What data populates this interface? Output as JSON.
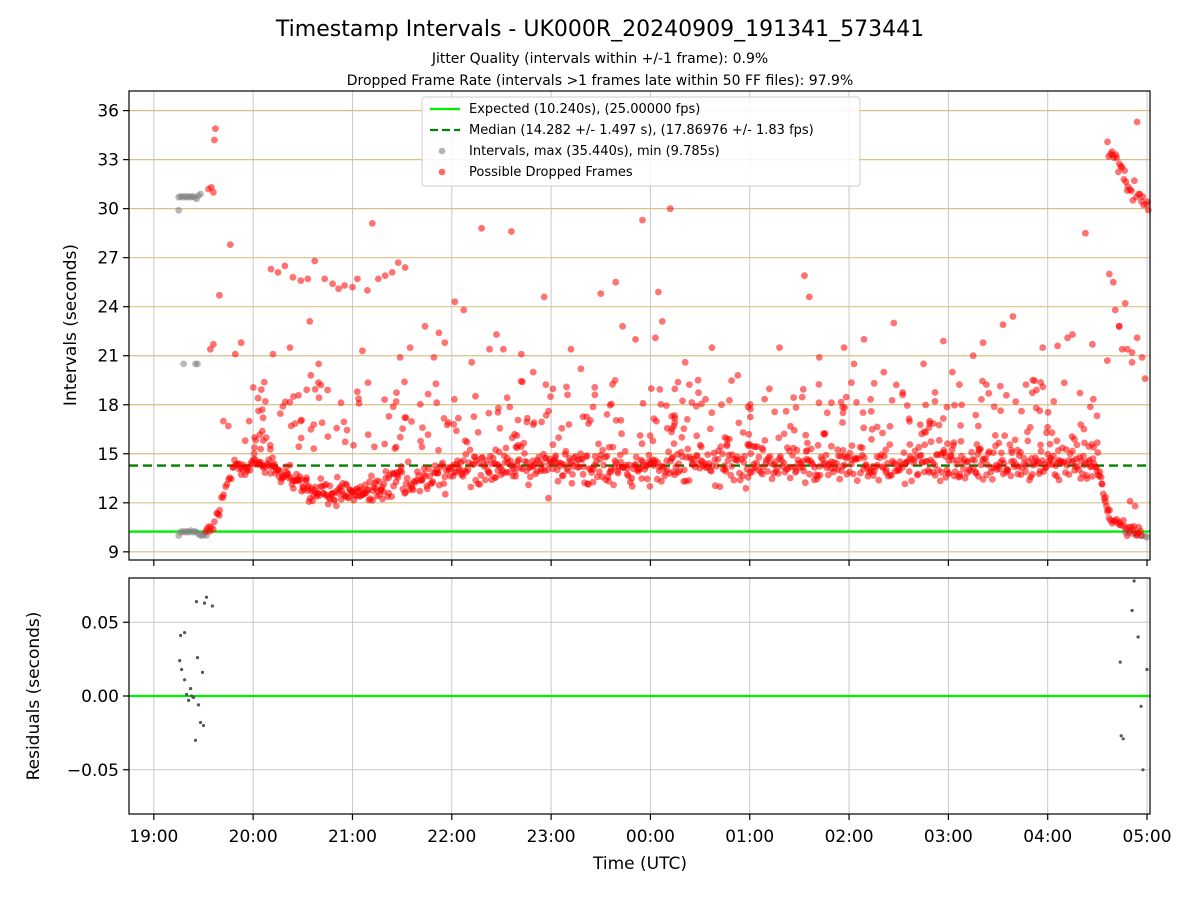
{
  "chart_data": [
    {
      "type": "scatter",
      "title": "Timestamp Intervals - UK000R_20240909_191341_573441",
      "subtitle_1": "Jitter Quality (intervals within +/-1 frame): 0.9%",
      "subtitle_2": "Dropped Frame Rate (intervals >1 frames late within 50 FF files): 97.9%",
      "ylabel": "Intervals (seconds)",
      "ylim": [
        8.5,
        37.2
      ],
      "yticks": [
        9,
        12,
        15,
        18,
        21,
        24,
        27,
        30,
        33,
        36
      ],
      "xlim_hours": [
        18.75,
        29.03
      ],
      "grid": true,
      "legend_position": "top-center",
      "reference_lines": [
        {
          "name": "Expected (10.240s), (25.00000 fps)",
          "y": 10.24,
          "style": "solid",
          "color": "#00ee00"
        },
        {
          "name": "Median (14.282 +/- 1.497 s), (17.86976 +/- 1.83 fps)",
          "y": 14.282,
          "style": "dashed",
          "color": "#008000"
        }
      ],
      "series": [
        {
          "name": "Intervals, max (35.440s), min (9.785s)",
          "color": "#808080",
          "points": [
            [
              19.25,
              30.7
            ],
            [
              19.27,
              30.75
            ],
            [
              19.29,
              30.7
            ],
            [
              19.31,
              30.75
            ],
            [
              19.33,
              30.7
            ],
            [
              19.35,
              30.75
            ],
            [
              19.37,
              30.7
            ],
            [
              19.39,
              30.75
            ],
            [
              19.41,
              30.7
            ],
            [
              19.43,
              30.6
            ],
            [
              19.45,
              30.8
            ],
            [
              19.47,
              30.9
            ],
            [
              19.25,
              29.9
            ],
            [
              19.3,
              20.5
            ],
            [
              19.42,
              20.5
            ],
            [
              19.44,
              20.5
            ],
            [
              19.25,
              10.0
            ],
            [
              19.27,
              10.2
            ],
            [
              19.29,
              10.25
            ],
            [
              19.31,
              10.2
            ],
            [
              19.33,
              10.25
            ],
            [
              19.35,
              10.2
            ],
            [
              19.37,
              10.3
            ],
            [
              19.39,
              10.2
            ],
            [
              19.41,
              10.25
            ],
            [
              19.43,
              10.2
            ],
            [
              19.45,
              10.1
            ],
            [
              19.47,
              10.0
            ],
            [
              19.49,
              10.0
            ],
            [
              19.51,
              10.1
            ],
            [
              19.53,
              10.0
            ],
            [
              28.78,
              10.2
            ],
            [
              28.82,
              10.15
            ],
            [
              28.86,
              10.1
            ],
            [
              28.9,
              10.05
            ],
            [
              28.94,
              10.0
            ],
            [
              28.98,
              9.95
            ],
            [
              29.0,
              9.9
            ]
          ]
        },
        {
          "name": "Possible Dropped Frames",
          "color": "#ff0000",
          "clusters": [
            {
              "x_start": 19.52,
              "x_end": 19.66,
              "y_start": 10.3,
              "y_end": 11.2,
              "count": 10,
              "spread": 0.25
            },
            {
              "x_start": 19.66,
              "x_end": 19.8,
              "y_start": 11.8,
              "y_end": 14.2,
              "count": 10,
              "spread": 0.3
            },
            {
              "x_start": 19.8,
              "x_end": 20.2,
              "y_start": 14.2,
              "y_end": 14.4,
              "count": 40,
              "spread": 0.3
            },
            {
              "x_start": 20.2,
              "x_end": 20.55,
              "y_start": 14.0,
              "y_end": 13.0,
              "count": 40,
              "spread": 0.35
            },
            {
              "x_start": 20.55,
              "x_end": 21.3,
              "y_start": 12.6,
              "y_end": 12.8,
              "count": 90,
              "spread": 0.4
            },
            {
              "x_start": 21.3,
              "x_end": 22.1,
              "y_start": 13.0,
              "y_end": 14.0,
              "count": 80,
              "spread": 0.45
            },
            {
              "x_start": 22.1,
              "x_end": 24.0,
              "y_start": 14.2,
              "y_end": 14.3,
              "count": 200,
              "spread": 0.55
            },
            {
              "x_start": 24.0,
              "x_end": 27.0,
              "y_start": 14.3,
              "y_end": 14.3,
              "count": 280,
              "spread": 0.5
            },
            {
              "x_start": 27.0,
              "x_end": 28.5,
              "y_start": 14.3,
              "y_end": 14.5,
              "count": 150,
              "spread": 0.5
            },
            {
              "x_start": 28.5,
              "x_end": 28.62,
              "y_start": 14.0,
              "y_end": 11.5,
              "count": 15,
              "spread": 0.25
            },
            {
              "x_start": 28.62,
              "x_end": 28.95,
              "y_start": 10.9,
              "y_end": 10.3,
              "count": 25,
              "spread": 0.2
            },
            {
              "x_start": 28.6,
              "x_end": 28.78,
              "y_start": 33.8,
              "y_end": 31.8,
              "count": 14,
              "spread": 0.25
            },
            {
              "x_start": 28.78,
              "x_end": 29.02,
              "y_start": 31.5,
              "y_end": 30.0,
              "count": 16,
              "spread": 0.25
            }
          ],
          "scatter_band": {
            "x_start": 20.0,
            "x_end": 28.5,
            "y_min": 15.2,
            "y_max": 19.5,
            "count": 320
          },
          "outliers": [
            [
              19.55,
              31.2
            ],
            [
              19.58,
              31.3
            ],
            [
              19.6,
              31.0
            ],
            [
              19.62,
              34.9
            ],
            [
              19.61,
              34.2
            ],
            [
              19.66,
              24.7
            ],
            [
              19.77,
              27.8
            ],
            [
              19.57,
              21.4
            ],
            [
              19.6,
              21.7
            ],
            [
              19.7,
              17.0
            ],
            [
              19.75,
              16.7
            ],
            [
              19.82,
              21.1
            ],
            [
              19.88,
              21.8
            ],
            [
              19.92,
              15.8
            ],
            [
              19.96,
              17.0
            ],
            [
              20.05,
              18.4
            ],
            [
              20.1,
              17.2
            ],
            [
              20.18,
              26.3
            ],
            [
              20.25,
              26.1
            ],
            [
              20.32,
              26.5
            ],
            [
              20.4,
              25.8
            ],
            [
              20.48,
              25.6
            ],
            [
              20.55,
              25.7
            ],
            [
              20.62,
              26.8
            ],
            [
              20.72,
              25.7
            ],
            [
              20.8,
              25.4
            ],
            [
              20.86,
              25.1
            ],
            [
              20.92,
              25.3
            ],
            [
              21.0,
              25.2
            ],
            [
              21.05,
              25.7
            ],
            [
              21.15,
              25.0
            ],
            [
              21.2,
              29.1
            ],
            [
              21.26,
              25.7
            ],
            [
              21.33,
              25.9
            ],
            [
              21.4,
              26.1
            ],
            [
              21.46,
              26.7
            ],
            [
              21.53,
              26.4
            ],
            [
              20.37,
              21.5
            ],
            [
              20.2,
              21.1
            ],
            [
              20.57,
              23.1
            ],
            [
              20.66,
              20.5
            ],
            [
              20.75,
              18.9
            ],
            [
              20.58,
              19.8
            ],
            [
              20.3,
              17.9
            ],
            [
              20.48,
              17.0
            ],
            [
              21.1,
              21.3
            ],
            [
              21.48,
              20.9
            ],
            [
              21.58,
              21.5
            ],
            [
              21.73,
              22.8
            ],
            [
              21.82,
              20.9
            ],
            [
              21.87,
              22.4
            ],
            [
              21.93,
              21.8
            ],
            [
              22.03,
              24.3
            ],
            [
              22.12,
              23.8
            ],
            [
              22.2,
              20.6
            ],
            [
              22.3,
              28.8
            ],
            [
              22.6,
              28.6
            ],
            [
              22.38,
              21.4
            ],
            [
              22.45,
              22.3
            ],
            [
              22.52,
              21.4
            ],
            [
              22.7,
              21.1
            ],
            [
              22.82,
              20.0
            ],
            [
              22.93,
              24.6
            ],
            [
              23.2,
              21.4
            ],
            [
              23.3,
              20.2
            ],
            [
              23.5,
              24.8
            ],
            [
              23.65,
              25.5
            ],
            [
              23.72,
              22.8
            ],
            [
              23.85,
              22.0
            ],
            [
              23.92,
              29.3
            ],
            [
              24.05,
              22.1
            ],
            [
              24.08,
              24.9
            ],
            [
              24.12,
              23.1
            ],
            [
              24.2,
              30.0
            ],
            [
              24.35,
              20.6
            ],
            [
              24.48,
              19.5
            ],
            [
              24.62,
              21.5
            ],
            [
              24.88,
              19.8
            ],
            [
              25.3,
              21.5
            ],
            [
              25.55,
              25.9
            ],
            [
              25.6,
              24.6
            ],
            [
              25.7,
              20.9
            ],
            [
              25.95,
              21.5
            ],
            [
              26.05,
              20.5
            ],
            [
              26.15,
              22.0
            ],
            [
              26.35,
              20.0
            ],
            [
              26.45,
              23.0
            ],
            [
              26.75,
              20.5
            ],
            [
              26.95,
              21.9
            ],
            [
              27.04,
              20.0
            ],
            [
              27.25,
              21.0
            ],
            [
              27.35,
              21.8
            ],
            [
              27.55,
              22.9
            ],
            [
              27.65,
              23.4
            ],
            [
              27.85,
              19.5
            ],
            [
              27.95,
              21.5
            ],
            [
              28.1,
              21.6
            ],
            [
              28.2,
              22.1
            ],
            [
              28.25,
              22.3
            ],
            [
              28.38,
              28.5
            ],
            [
              28.45,
              21.7
            ],
            [
              28.6,
              20.7
            ],
            [
              28.72,
              22.8
            ],
            [
              28.78,
              24.2
            ],
            [
              28.85,
              20.6
            ],
            [
              28.9,
              22.1
            ],
            [
              28.62,
              26.0
            ],
            [
              28.66,
              25.5
            ],
            [
              28.68,
              23.8
            ],
            [
              28.72,
              22.8
            ],
            [
              28.75,
              21.4
            ],
            [
              28.8,
              21.4
            ],
            [
              28.85,
              21.2
            ],
            [
              28.9,
              35.3
            ],
            [
              28.95,
              20.9
            ],
            [
              28.98,
              19.6
            ],
            [
              28.83,
              12.1
            ],
            [
              28.88,
              11.8
            ]
          ]
        }
      ]
    },
    {
      "type": "scatter",
      "xlabel": "Time (UTC)",
      "ylabel": "Residuals (seconds)",
      "ylim": [
        -0.08,
        0.08
      ],
      "yticks": [
        -0.05,
        0.0,
        0.05
      ],
      "ytick_labels": [
        "−0.05",
        "0.00",
        "0.05"
      ],
      "xlim_hours": [
        18.75,
        29.03
      ],
      "xticks": [
        19,
        20,
        21,
        22,
        23,
        24,
        25,
        26,
        27,
        28,
        29
      ],
      "xtick_labels": [
        "19:00",
        "20:00",
        "21:00",
        "22:00",
        "23:00",
        "00:00",
        "01:00",
        "02:00",
        "03:00",
        "04:00",
        "05:00"
      ],
      "grid": true,
      "zero_line_color": "#00ee00",
      "series": [
        {
          "color": "#555555",
          "points": [
            [
              19.26,
              0.024
            ],
            [
              19.28,
              0.018
            ],
            [
              19.27,
              0.041
            ],
            [
              19.31,
              0.043
            ],
            [
              19.31,
              0.011
            ],
            [
              19.33,
              0.001
            ],
            [
              19.35,
              -0.003
            ],
            [
              19.37,
              0.005
            ],
            [
              19.38,
              0.0
            ],
            [
              19.4,
              -0.001
            ],
            [
              19.42,
              -0.03
            ],
            [
              19.43,
              0.064
            ],
            [
              19.44,
              0.026
            ],
            [
              19.45,
              -0.006
            ],
            [
              19.47,
              -0.018
            ],
            [
              19.49,
              0.016
            ],
            [
              19.5,
              -0.02
            ],
            [
              19.51,
              0.063
            ],
            [
              19.53,
              0.067
            ],
            [
              19.59,
              0.061
            ],
            [
              28.73,
              0.023
            ],
            [
              28.74,
              -0.027
            ],
            [
              28.76,
              -0.029
            ],
            [
              28.85,
              0.058
            ],
            [
              28.87,
              0.078
            ],
            [
              28.91,
              0.04
            ],
            [
              28.94,
              -0.007
            ],
            [
              28.96,
              -0.05
            ],
            [
              29.0,
              0.018
            ]
          ]
        }
      ]
    }
  ]
}
